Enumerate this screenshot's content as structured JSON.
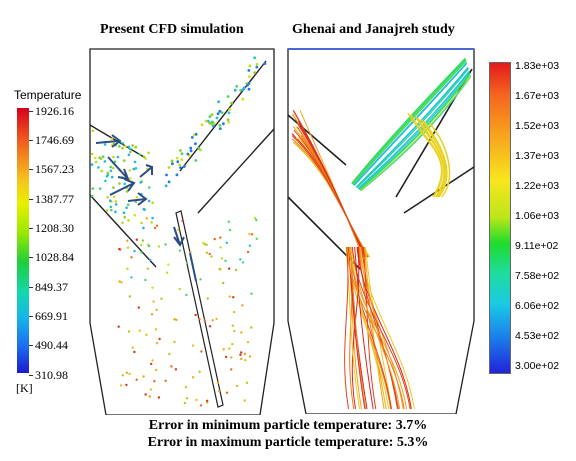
{
  "titles": {
    "left": "Present CFD simulation",
    "right": "Ghenai and  Janajreh study"
  },
  "left_legend": {
    "label": "Temperature",
    "unit": "[K]",
    "ticks": [
      "1926.16",
      "1746.69",
      "1567.23",
      "1387.77",
      "1208.30",
      "1028.84",
      "849.37",
      "669.91",
      "490.44",
      "310.98"
    ]
  },
  "right_legend": {
    "ticks": [
      "1.83e+03",
      "1.67e+03",
      "1.52e+03",
      "1.37e+03",
      "1.22e+03",
      "1.06e+03",
      "9.11e+02",
      "7.58e+02",
      "6.06e+02",
      "4.53e+02",
      "3.00e+02"
    ]
  },
  "notes": {
    "min_error": "Error in minimum particle temperature: 3.7%",
    "max_error": "Error in maximum particle temperature: 5.3%"
  }
}
